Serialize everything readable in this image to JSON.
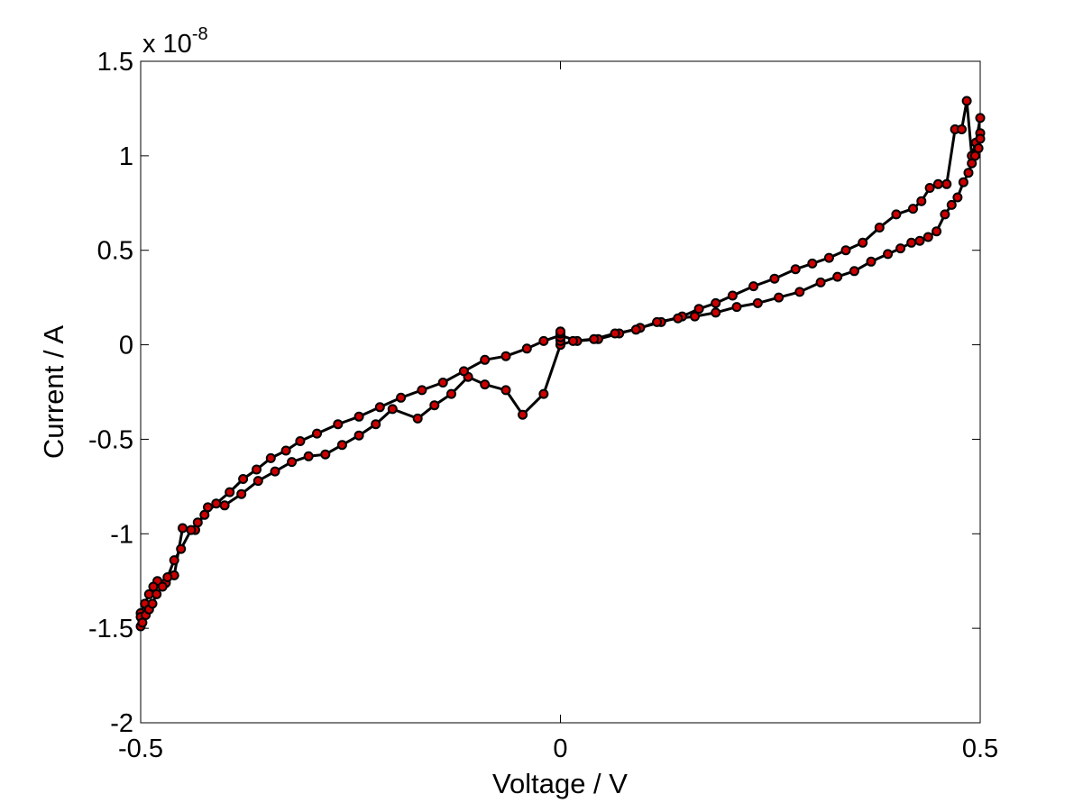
{
  "chart_data": {
    "type": "line",
    "xlabel": "Voltage / V",
    "ylabel": "Current / A",
    "y_scale_exponent": {
      "base": "x 10",
      "power": "-8"
    },
    "xlim": [
      -0.5,
      0.5
    ],
    "ylim": [
      -2.0,
      1.5
    ],
    "x_ticks": [
      -0.5,
      0,
      0.5
    ],
    "x_tick_labels": [
      "-0.5",
      "0",
      "0.5"
    ],
    "y_ticks": [
      -2.0,
      -1.5,
      -1.0,
      -0.5,
      0,
      0.5,
      1.0,
      1.5
    ],
    "y_tick_labels": [
      "-2",
      "-1.5",
      "-1",
      "-0.5",
      "0",
      "0.5",
      "1",
      "1.5"
    ],
    "grid": false,
    "line_color": "#000000",
    "marker_face_color": "#cc0000",
    "marker_edge_color": "#000000",
    "series": [
      {
        "x": [
          0.0,
          0.0,
          0.0,
          -0.02,
          -0.045,
          -0.065,
          -0.09,
          -0.11,
          -0.13,
          -0.15,
          -0.17,
          -0.2,
          -0.22,
          -0.24,
          -0.26,
          -0.28,
          -0.3,
          -0.32,
          -0.34,
          -0.36,
          -0.38,
          -0.4,
          -0.42,
          -0.435,
          -0.45,
          -0.46,
          -0.47,
          -0.48,
          -0.485,
          -0.49,
          -0.495,
          -0.5,
          -0.5,
          -0.5,
          -0.498,
          -0.494,
          -0.49,
          -0.486,
          -0.481,
          -0.474,
          -0.468,
          -0.46,
          -0.452,
          -0.44,
          -0.432,
          -0.424,
          -0.41,
          -0.394,
          -0.378,
          -0.362,
          -0.345,
          -0.327,
          -0.31,
          -0.29,
          -0.265,
          -0.24,
          -0.215,
          -0.19,
          -0.165,
          -0.14,
          -0.115,
          -0.09,
          -0.065,
          -0.04,
          -0.02,
          0.0,
          0.02,
          0.045,
          0.07,
          0.095,
          0.12,
          0.145,
          0.165,
          0.185,
          0.205,
          0.23,
          0.255,
          0.28,
          0.3,
          0.32,
          0.34,
          0.36,
          0.38,
          0.4,
          0.42,
          0.43,
          0.44,
          0.45,
          0.46,
          0.47,
          0.478,
          0.484,
          0.49,
          0.495,
          0.5
        ],
        "y": [
          0.07,
          0.03,
          0.0,
          -0.26,
          -0.37,
          -0.24,
          -0.21,
          -0.17,
          -0.26,
          -0.32,
          -0.39,
          -0.34,
          -0.42,
          -0.48,
          -0.53,
          -0.58,
          -0.59,
          -0.62,
          -0.67,
          -0.72,
          -0.79,
          -0.85,
          -0.86,
          -0.98,
          -0.97,
          -1.22,
          -1.26,
          -1.25,
          -1.28,
          -1.32,
          -1.37,
          -1.42,
          -1.44,
          -1.49,
          -1.47,
          -1.43,
          -1.4,
          -1.37,
          -1.32,
          -1.28,
          -1.23,
          -1.14,
          -1.08,
          -0.98,
          -0.94,
          -0.9,
          -0.84,
          -0.78,
          -0.71,
          -0.66,
          -0.6,
          -0.56,
          -0.51,
          -0.47,
          -0.42,
          -0.38,
          -0.33,
          -0.28,
          -0.24,
          -0.2,
          -0.14,
          -0.08,
          -0.06,
          -0.02,
          0.02,
          0.05,
          0.02,
          0.03,
          0.06,
          0.09,
          0.12,
          0.15,
          0.19,
          0.22,
          0.26,
          0.31,
          0.35,
          0.4,
          0.43,
          0.46,
          0.5,
          0.54,
          0.62,
          0.69,
          0.72,
          0.76,
          0.83,
          0.85,
          0.85,
          1.14,
          1.14,
          1.29,
          1.0,
          1.07,
          1.2
        ]
      },
      {
        "x": [
          0.5,
          0.5,
          0.498,
          0.494,
          0.49,
          0.486,
          0.48,
          0.473,
          0.466,
          0.458,
          0.448,
          0.438,
          0.428,
          0.418,
          0.405,
          0.39,
          0.37,
          0.35,
          0.33,
          0.31,
          0.285,
          0.26,
          0.235,
          0.21,
          0.185,
          0.16,
          0.14,
          0.115,
          0.09,
          0.065,
          0.04,
          0.015,
          0.0,
          0.0,
          0.0,
          0.0,
          0.0
        ],
        "y": [
          1.12,
          1.09,
          1.04,
          1.0,
          0.96,
          0.91,
          0.86,
          0.78,
          0.74,
          0.69,
          0.6,
          0.57,
          0.55,
          0.54,
          0.51,
          0.48,
          0.44,
          0.39,
          0.36,
          0.33,
          0.28,
          0.25,
          0.22,
          0.2,
          0.17,
          0.15,
          0.14,
          0.12,
          0.08,
          0.06,
          0.03,
          0.02,
          0.0,
          0.02,
          0.04,
          0.06,
          0.07
        ]
      }
    ]
  }
}
